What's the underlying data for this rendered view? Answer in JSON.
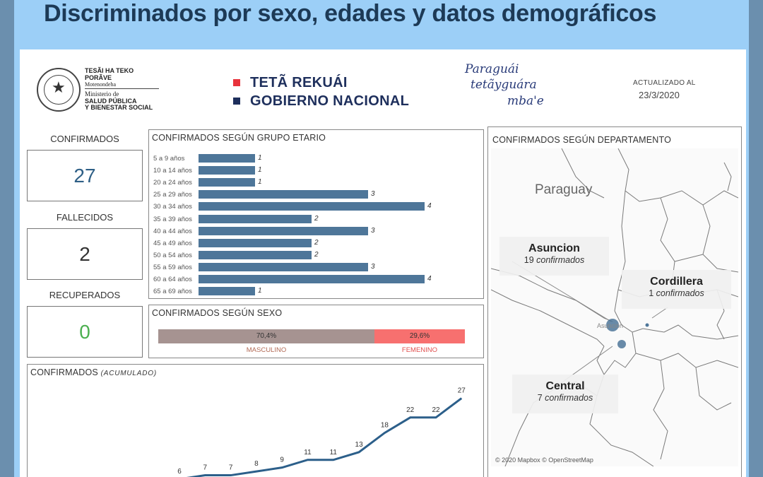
{
  "banner": {
    "title": "Discriminados por sexo, edades y datos demográficos"
  },
  "header": {
    "ministry": {
      "line1": "TESÃI HA TEKO",
      "line2": "PORÃVE",
      "line3": "Motenondeha",
      "line4": "Ministerio de",
      "line5": "SALUD PÚBLICA",
      "line6": "Y BIENESTAR SOCIAL"
    },
    "teta_rekuai": "TETÃ REKUÁI",
    "gobierno_nacional": "GOBIERNO NACIONAL",
    "script_logo": {
      "line1": "Paraguái",
      "line2": "tetãyguára",
      "line3": "mba'e"
    },
    "updated_label": "ACTUALIZADO AL",
    "updated_date": "23/3/2020",
    "colors": {
      "red": "#e8333c",
      "navy": "#1e2f5c"
    }
  },
  "kpis": {
    "confirmados": {
      "label": "CONFIRMADOS",
      "value": "27",
      "color": "#2e5f86"
    },
    "fallecidos": {
      "label": "FALLECIDOS",
      "value": "2",
      "color": "#333333"
    },
    "recuperados": {
      "label": "RECUPERADOS",
      "value": "0",
      "color": "#4caf50"
    }
  },
  "age_chart": {
    "title": "CONFIRMADOS SEGÚN GRUPO ETARIO",
    "rows": [
      {
        "label": "5 a 9 años",
        "value": 1
      },
      {
        "label": "10 a 14 años",
        "value": 1
      },
      {
        "label": "20 a 24 años",
        "value": 1
      },
      {
        "label": "25 a 29 años",
        "value": 3
      },
      {
        "label": "30 a 34 años",
        "value": 4
      },
      {
        "label": "35 a 39 años",
        "value": 2
      },
      {
        "label": "40 a 44 años",
        "value": 3
      },
      {
        "label": "45 a 49 años",
        "value": 2
      },
      {
        "label": "50 a 54 años",
        "value": 2
      },
      {
        "label": "55 a 59 años",
        "value": 3
      },
      {
        "label": "60 a 64 años",
        "value": 4
      },
      {
        "label": "65 a 69 años",
        "value": 1
      }
    ],
    "bar_color": "#4e7699"
  },
  "sex_chart": {
    "title": "CONFIRMADOS SEGÚN SEXO",
    "masculino": {
      "pct_label": "70,4%",
      "fraction": 0.704,
      "label": "MASCULINO",
      "color": "#a69391"
    },
    "femenino": {
      "pct_label": "29,6%",
      "fraction": 0.296,
      "label": "FEMENINO",
      "color": "#f7706f"
    }
  },
  "cumulative": {
    "title": "CONFIRMADOS",
    "subtitle": "(ACUMULADO)",
    "line_color": "#2c5f8a"
  },
  "chart_data": {
    "type": "line",
    "title": "CONFIRMADOS (ACUMULADO)",
    "values": [
      6,
      7,
      7,
      8,
      9,
      11,
      11,
      13,
      18,
      22,
      22,
      27
    ],
    "data_labels": [
      "6",
      "7",
      "7",
      "8",
      "9",
      "11",
      "11",
      "13",
      "18",
      "22",
      "22",
      "27"
    ]
  },
  "map": {
    "title": "CONFIRMADOS SEGÚN DEPARTAMENTO",
    "country": "Paraguay",
    "city_label": "Asunción",
    "callouts": [
      {
        "name": "Asuncion",
        "count": "19",
        "suffix": "confirmados"
      },
      {
        "name": "Cordillera",
        "count": "1",
        "suffix": "confirmados"
      },
      {
        "name": "Central",
        "count": "7",
        "suffix": "confirmados"
      }
    ],
    "credit": "© 2020 Mapbox © OpenStreetMap"
  }
}
